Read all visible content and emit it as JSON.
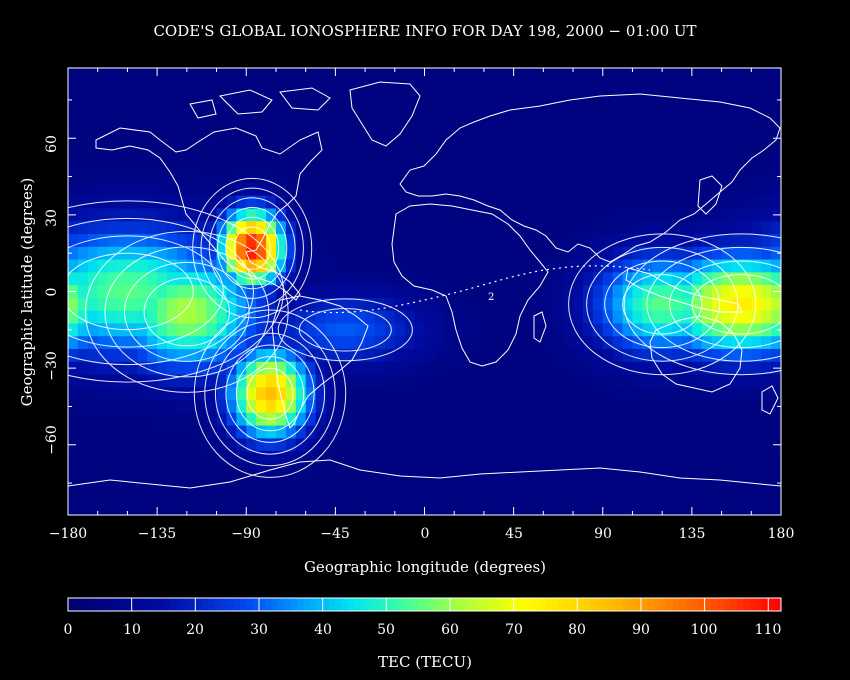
{
  "title": "CODE'S GLOBAL IONOSPHERE INFO FOR DAY 198, 2000 − 01:00 UT",
  "xlabel": "Geographic longitude (degrees)",
  "ylabel": "Geographic latitude (degrees)",
  "x_ticks": [
    "−180",
    "−135",
    "−90",
    "−45",
    "0",
    "45",
    "90",
    "135",
    "180"
  ],
  "y_ticks": [
    "60",
    "30",
    "0",
    "−30",
    "−60"
  ],
  "colorbar": {
    "label": "TEC (TECU)",
    "ticks": [
      "0",
      "10",
      "20",
      "30",
      "40",
      "50",
      "60",
      "70",
      "80",
      "90",
      "100",
      "110"
    ],
    "range": [
      0,
      112
    ]
  },
  "contour_label": "2",
  "colors": {
    "background": "#000000",
    "foreground": "#ffffff"
  },
  "chart_data": {
    "type": "heatmap",
    "title": "CODE'S GLOBAL IONOSPHERE INFO FOR DAY 198, 2000 − 01:00 UT",
    "xlabel": "Geographic longitude (degrees)",
    "ylabel": "Geographic latitude (degrees)",
    "xlim": [
      -180,
      180
    ],
    "ylim": [
      -87.5,
      87.5
    ],
    "value_label": "TEC (TECU)",
    "value_range": [
      0,
      112
    ],
    "background_level": 5,
    "enhancements": [
      {
        "region": "Central America peak",
        "lon": -87,
        "lat": 17,
        "peak": 110
      },
      {
        "region": "South America peak",
        "lon": -78,
        "lat": -40,
        "peak": 85
      },
      {
        "region": "Western Pacific peak",
        "lon": 160,
        "lat": -5,
        "peak": 75
      },
      {
        "region": "Eastern Pacific band",
        "lon": -150,
        "lat": 0,
        "peak": 55
      },
      {
        "region": "Central Pacific band",
        "lon": -120,
        "lat": -8,
        "peak": 62
      },
      {
        "region": "Indonesia band",
        "lon": 120,
        "lat": -5,
        "peak": 55
      },
      {
        "region": "South Atlantic tongue",
        "lon": -40,
        "lat": -15,
        "peak": 30
      }
    ]
  }
}
